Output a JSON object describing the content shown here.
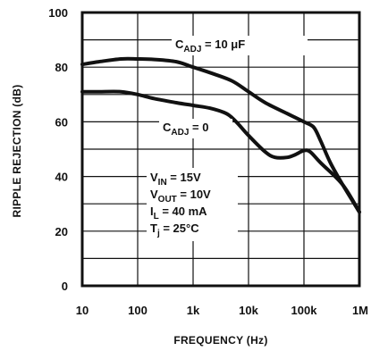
{
  "chart_data": {
    "type": "line",
    "xlabel": "FREQUENCY (Hz)",
    "ylabel": "RIPPLE REJECTION (dB)",
    "x_scale": "log",
    "xlim": [
      10,
      1000000
    ],
    "ylim": [
      0,
      100
    ],
    "grid": true,
    "x_ticks": [
      {
        "value": 10,
        "label": "10"
      },
      {
        "value": 100,
        "label": "100"
      },
      {
        "value": 1000,
        "label": "1k"
      },
      {
        "value": 10000,
        "label": "10k"
      },
      {
        "value": 100000,
        "label": "100k"
      },
      {
        "value": 1000000,
        "label": "1M"
      }
    ],
    "y_ticks": [
      {
        "value": 0,
        "label": "0"
      },
      {
        "value": 20,
        "label": "20"
      },
      {
        "value": 40,
        "label": "40"
      },
      {
        "value": 60,
        "label": "60"
      },
      {
        "value": 80,
        "label": "80"
      },
      {
        "value": 100,
        "label": "100"
      }
    ],
    "series": [
      {
        "label_main": "C",
        "label_sub": "ADJ",
        "label_rest": " = 10 μF",
        "x": [
          10,
          20,
          50,
          100,
          200,
          500,
          1000,
          2000,
          5000,
          10000,
          20000,
          50000,
          100000,
          150000,
          200000,
          300000,
          500000,
          1000000
        ],
        "y": [
          81,
          82,
          83,
          83,
          82.8,
          82,
          80,
          78,
          75,
          71,
          67,
          63,
          60,
          58,
          53,
          45,
          37,
          27
        ]
      },
      {
        "label_main": "C",
        "label_sub": "ADJ",
        "label_rest": " = 0",
        "x": [
          10,
          20,
          50,
          100,
          200,
          500,
          1000,
          2000,
          4000,
          6000,
          10000,
          20000,
          30000,
          50000,
          70000,
          100000,
          130000,
          200000,
          500000,
          1000000
        ],
        "y": [
          71,
          71,
          71,
          70,
          68.5,
          67,
          66,
          65,
          63,
          60,
          55,
          49,
          47,
          47,
          48,
          49.5,
          49,
          45,
          37,
          27
        ]
      }
    ],
    "conditions": [
      {
        "main": "V",
        "sub": "IN",
        "rest": " = 15V"
      },
      {
        "main": "V",
        "sub": "OUT",
        "rest": " = 10V"
      },
      {
        "main": "I",
        "sub": "L",
        "rest": " = 40 mA"
      },
      {
        "main": "T",
        "sub": "j",
        "rest": " = 25°C"
      }
    ]
  }
}
